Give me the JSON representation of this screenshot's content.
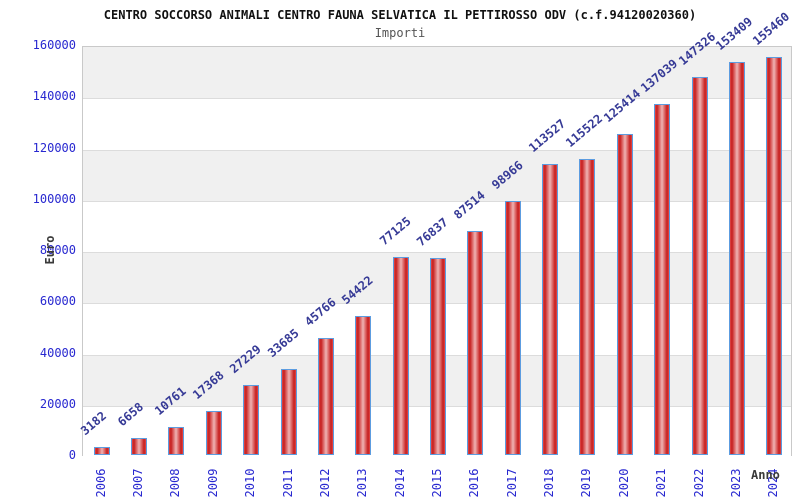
{
  "chart_data": {
    "type": "bar",
    "title": "CENTRO SOCCORSO ANIMALI CENTRO FAUNA SELVATICA IL PETTIROSSO ODV (c.f.94120020360)",
    "subtitle": "Importi",
    "xlabel": "Anno",
    "ylabel": "Euro",
    "categories": [
      "2006",
      "2007",
      "2008",
      "2009",
      "2010",
      "2011",
      "2012",
      "2013",
      "2014",
      "2015",
      "2016",
      "2017",
      "2018",
      "2019",
      "2020",
      "2021",
      "2022",
      "2023",
      "2024"
    ],
    "values": [
      3182,
      6658,
      10761,
      17368,
      27229,
      33685,
      45766,
      54422,
      77125,
      76837,
      87514,
      98966,
      113527,
      115522,
      125414,
      137039,
      147326,
      153409,
      155460
    ],
    "ylim": [
      0,
      160000
    ],
    "ytick_step": 20000,
    "yticks": [
      0,
      20000,
      40000,
      60000,
      80000,
      100000,
      120000,
      140000,
      160000
    ],
    "grid": "horizontal alternating bands",
    "legend_position": "none",
    "bar_labels_rotated_deg": -40,
    "x_labels_rotated_deg": -90
  },
  "style": {
    "band_gray": "#f0f0f0",
    "band_white": "#ffffff",
    "grid_color": "#dcdcdc",
    "bar_border": "#5c9ce0",
    "bar_red_dark": "#c51d1d",
    "bar_red_light": "#efb3b3",
    "tick_label_color": "#2828d0",
    "value_label_color": "#363a96",
    "axis_label_color": "#3a3a3a",
    "title_color": "#111111",
    "subtitle_color": "#555555"
  }
}
